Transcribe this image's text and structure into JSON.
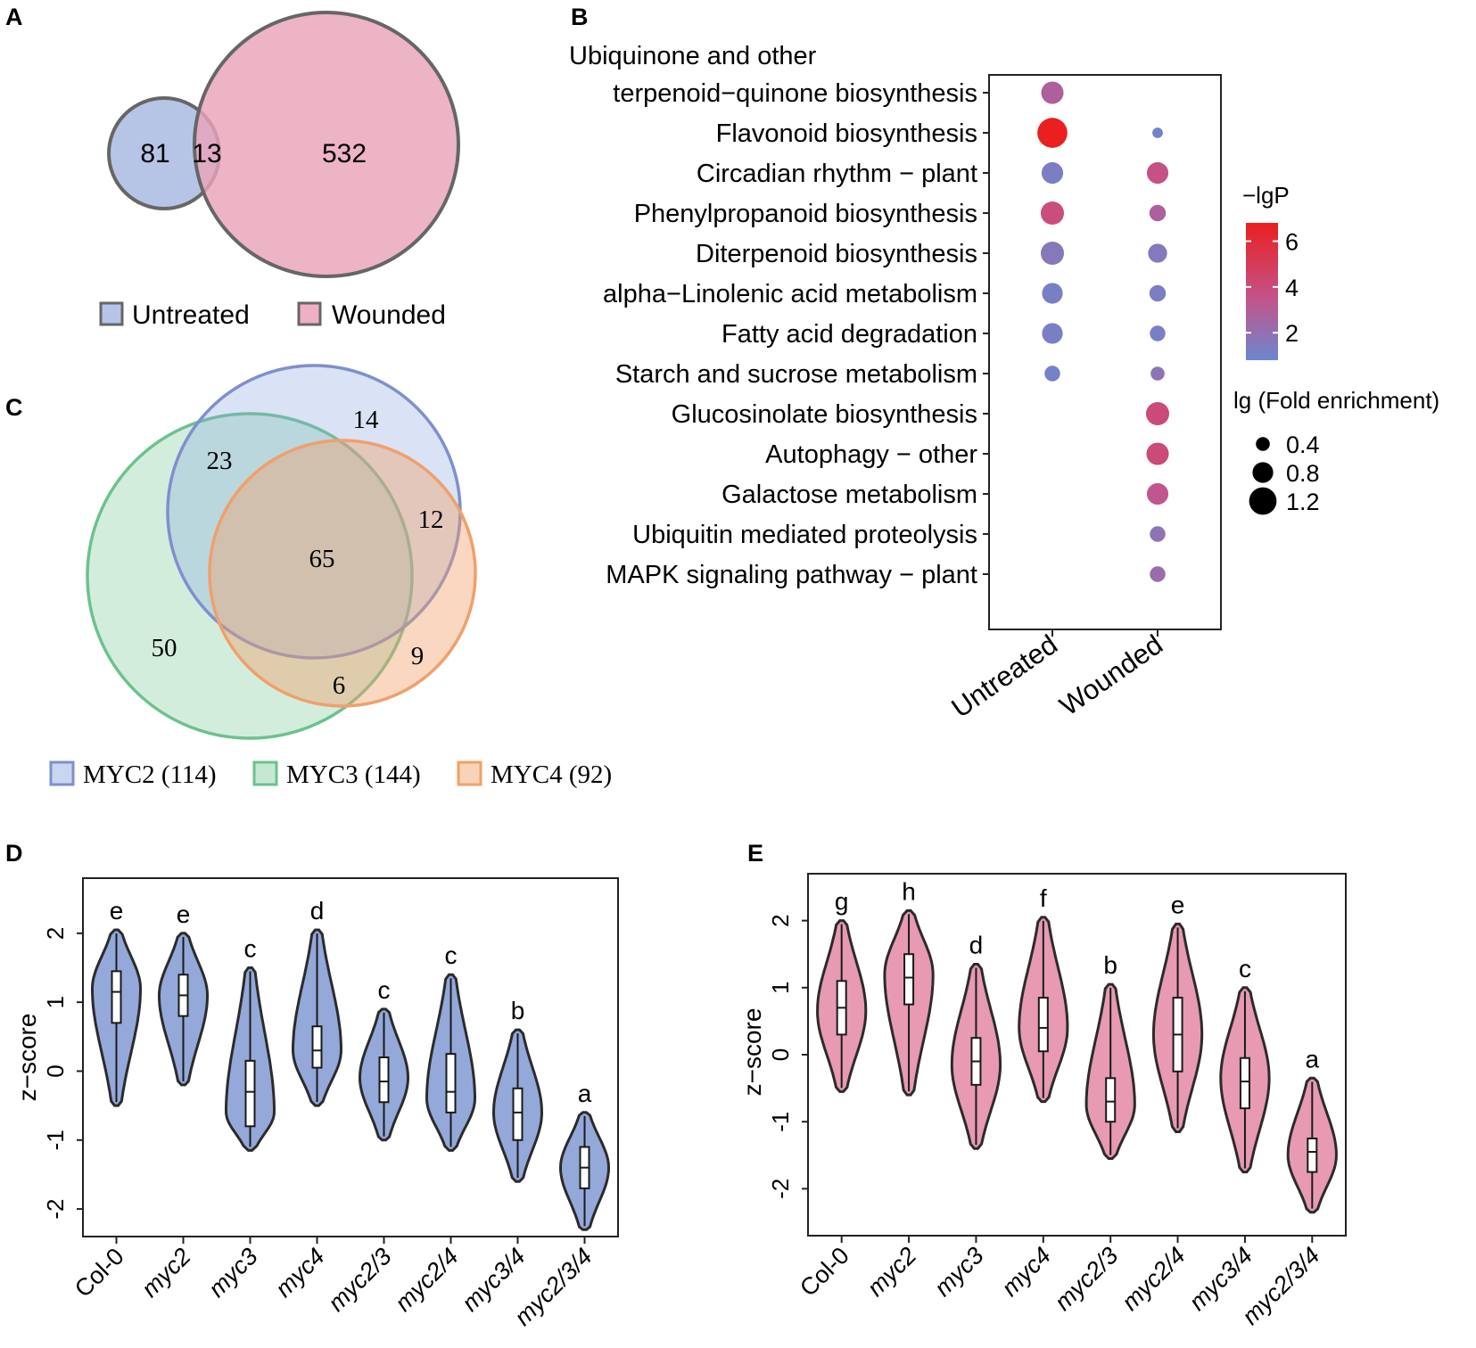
{
  "panel_labels": {
    "a": "A",
    "b": "B",
    "c": "C",
    "d": "D",
    "e": "E"
  },
  "colors": {
    "untreated": "#8fa3d6",
    "wounded": "#e48ba7",
    "myc2": "#7f8fcf",
    "myc3": "#6cc28d",
    "myc4": "#f0a06b",
    "violin_d": "#8fa3d6",
    "violin_e": "#e48ba7",
    "high_p": "#e8302a",
    "low_p": "#6c87cf"
  },
  "chart_data": [
    {
      "panel": "A",
      "type": "venn",
      "sets": [
        {
          "name": "Untreated",
          "only": 81
        },
        {
          "name": "Wounded",
          "only": 532
        }
      ],
      "overlap": 13,
      "legend": [
        "Untreated",
        "Wounded"
      ]
    },
    {
      "panel": "B",
      "type": "scatter",
      "subtype": "dot-plot",
      "categories_x": [
        "Untreated",
        "Wounded"
      ],
      "pathways": [
        "Ubiquinone and other terpenoid−quinone biosynthesis",
        "Flavonoid biosynthesis",
        "Circadian rhythm − plant",
        "Phenylpropanoid biosynthesis",
        "Diterpenoid biosynthesis",
        "alpha−Linolenic acid metabolism",
        "Fatty acid degradation",
        "Starch and sucrose metabolism",
        "Glucosinolate biosynthesis",
        "Autophagy − other",
        "Galactose metabolism",
        "Ubiquitin mediated proteolysis",
        "MAPK signaling pathway − plant"
      ],
      "pathway_label_lines": [
        [
          "Ubiquinone and other",
          "terpenoid−quinone biosynthesis"
        ],
        [
          "Flavonoid biosynthesis"
        ],
        [
          "Circadian rhythm − plant"
        ],
        [
          "Phenylpropanoid biosynthesis"
        ],
        [
          "Diterpenoid biosynthesis"
        ],
        [
          "alpha−Linolenic acid metabolism"
        ],
        [
          "Fatty acid degradation"
        ],
        [
          "Starch and sucrose metabolism"
        ],
        [
          "Glucosinolate biosynthesis"
        ],
        [
          "Autophagy − other"
        ],
        [
          "Galactose metabolism"
        ],
        [
          "Ubiquitin mediated proteolysis"
        ],
        [
          "MAPK signaling pathway − plant"
        ]
      ],
      "points": [
        {
          "pathway": 0,
          "x": 0,
          "lgP": 2.8,
          "lgFE": 0.9
        },
        {
          "pathway": 1,
          "x": 0,
          "lgP": 6.8,
          "lgFE": 1.35
        },
        {
          "pathway": 1,
          "x": 1,
          "lgP": 1.0,
          "lgFE": 0.2
        },
        {
          "pathway": 2,
          "x": 0,
          "lgP": 1.3,
          "lgFE": 0.85
        },
        {
          "pathway": 2,
          "x": 1,
          "lgP": 3.6,
          "lgFE": 0.85
        },
        {
          "pathway": 3,
          "x": 0,
          "lgP": 3.9,
          "lgFE": 0.95
        },
        {
          "pathway": 3,
          "x": 1,
          "lgP": 2.8,
          "lgFE": 0.55
        },
        {
          "pathway": 4,
          "x": 0,
          "lgP": 1.6,
          "lgFE": 0.95
        },
        {
          "pathway": 4,
          "x": 1,
          "lgP": 1.5,
          "lgFE": 0.7
        },
        {
          "pathway": 5,
          "x": 0,
          "lgP": 1.2,
          "lgFE": 0.8
        },
        {
          "pathway": 5,
          "x": 1,
          "lgP": 1.3,
          "lgFE": 0.55
        },
        {
          "pathway": 6,
          "x": 0,
          "lgP": 1.2,
          "lgFE": 0.8
        },
        {
          "pathway": 6,
          "x": 1,
          "lgP": 1.2,
          "lgFE": 0.5
        },
        {
          "pathway": 7,
          "x": 0,
          "lgP": 1.1,
          "lgFE": 0.5
        },
        {
          "pathway": 7,
          "x": 1,
          "lgP": 1.8,
          "lgFE": 0.4
        },
        {
          "pathway": 8,
          "x": 1,
          "lgP": 4.0,
          "lgFE": 0.95
        },
        {
          "pathway": 9,
          "x": 1,
          "lgP": 4.1,
          "lgFE": 0.9
        },
        {
          "pathway": 10,
          "x": 1,
          "lgP": 3.4,
          "lgFE": 0.85
        },
        {
          "pathway": 11,
          "x": 1,
          "lgP": 1.8,
          "lgFE": 0.5
        },
        {
          "pathway": 12,
          "x": 1,
          "lgP": 2.2,
          "lgFE": 0.5
        }
      ],
      "color_legend": {
        "title": "−lgP",
        "ticks": [
          6,
          4,
          2
        ],
        "range": [
          0.8,
          6.8
        ]
      },
      "size_legend": {
        "title": "lg (Fold enrichment)",
        "values": [
          0.4,
          0.8,
          1.2
        ]
      }
    },
    {
      "panel": "C",
      "type": "venn",
      "sets": [
        {
          "name": "MYC2",
          "total": 114,
          "legend": "MYC2 (114)"
        },
        {
          "name": "MYC3",
          "total": 144,
          "legend": "MYC3 (144)"
        },
        {
          "name": "MYC4",
          "total": 92,
          "legend": "MYC4 (92)"
        }
      ],
      "regions": {
        "myc2_only": 14,
        "myc3_only": 50,
        "myc4_only": 9,
        "myc2_myc3": 23,
        "myc2_myc4": 12,
        "myc3_myc4": 6,
        "all": 65
      }
    },
    {
      "panel": "D",
      "type": "violin",
      "ylabel": "z−score",
      "ylim": [
        -2.4,
        2.8
      ],
      "yticks": [
        -2,
        -1,
        0,
        1,
        2
      ],
      "genotypes": [
        "Col-0",
        "myc2",
        "myc3",
        "myc4",
        "myc2/3",
        "myc2/4",
        "myc3/4",
        "myc2/3/4"
      ],
      "italic": [
        false,
        true,
        true,
        true,
        true,
        true,
        true,
        true
      ],
      "groups": [
        {
          "min": -0.5,
          "max": 2.05,
          "q1": 0.7,
          "median": 1.15,
          "q3": 1.45,
          "mode": 1.2,
          "letter": "e"
        },
        {
          "min": -0.2,
          "max": 2.0,
          "q1": 0.8,
          "median": 1.1,
          "q3": 1.4,
          "mode": 1.1,
          "letter": "e"
        },
        {
          "min": -1.15,
          "max": 1.5,
          "q1": -0.8,
          "median": -0.3,
          "q3": 0.15,
          "mode": -0.6,
          "letter": "c"
        },
        {
          "min": -0.5,
          "max": 2.05,
          "q1": 0.05,
          "median": 0.3,
          "q3": 0.65,
          "mode": 0.3,
          "letter": "d"
        },
        {
          "min": -1.0,
          "max": 0.9,
          "q1": -0.45,
          "median": -0.15,
          "q3": 0.2,
          "mode": -0.1,
          "letter": "c"
        },
        {
          "min": -1.15,
          "max": 1.4,
          "q1": -0.6,
          "median": -0.3,
          "q3": 0.25,
          "mode": -0.4,
          "letter": "c"
        },
        {
          "min": -1.6,
          "max": 0.6,
          "q1": -1.0,
          "median": -0.6,
          "q3": -0.25,
          "mode": -0.6,
          "letter": "b"
        },
        {
          "min": -2.3,
          "max": -0.6,
          "q1": -1.7,
          "median": -1.4,
          "q3": -1.1,
          "mode": -1.4,
          "letter": "a"
        }
      ]
    },
    {
      "panel": "E",
      "type": "violin",
      "ylabel": "z−score",
      "ylim": [
        -2.7,
        2.7
      ],
      "yticks": [
        -2,
        -1,
        0,
        1,
        2
      ],
      "genotypes": [
        "Col-0",
        "myc2",
        "myc3",
        "myc4",
        "myc2/3",
        "myc2/4",
        "myc3/4",
        "myc2/3/4"
      ],
      "italic": [
        false,
        true,
        true,
        true,
        true,
        true,
        true,
        true
      ],
      "groups": [
        {
          "min": -0.55,
          "max": 2.0,
          "q1": 0.3,
          "median": 0.7,
          "q3": 1.1,
          "mode": 0.65,
          "letter": "g"
        },
        {
          "min": -0.6,
          "max": 2.15,
          "q1": 0.75,
          "median": 1.15,
          "q3": 1.5,
          "mode": 1.2,
          "letter": "h"
        },
        {
          "min": -1.4,
          "max": 1.35,
          "q1": -0.45,
          "median": -0.1,
          "q3": 0.25,
          "mode": -0.15,
          "letter": "d"
        },
        {
          "min": -0.7,
          "max": 2.05,
          "q1": 0.05,
          "median": 0.4,
          "q3": 0.85,
          "mode": 0.4,
          "letter": "f"
        },
        {
          "min": -1.55,
          "max": 1.05,
          "q1": -1.0,
          "median": -0.7,
          "q3": -0.35,
          "mode": -0.75,
          "letter": "b"
        },
        {
          "min": -1.15,
          "max": 1.95,
          "q1": -0.25,
          "median": 0.3,
          "q3": 0.85,
          "mode": 0.3,
          "letter": "e"
        },
        {
          "min": -1.75,
          "max": 1.0,
          "q1": -0.8,
          "median": -0.4,
          "q3": -0.05,
          "mode": -0.35,
          "letter": "c"
        },
        {
          "min": -2.35,
          "max": -0.35,
          "q1": -1.75,
          "median": -1.45,
          "q3": -1.25,
          "mode": -1.5,
          "letter": "a"
        }
      ]
    }
  ]
}
